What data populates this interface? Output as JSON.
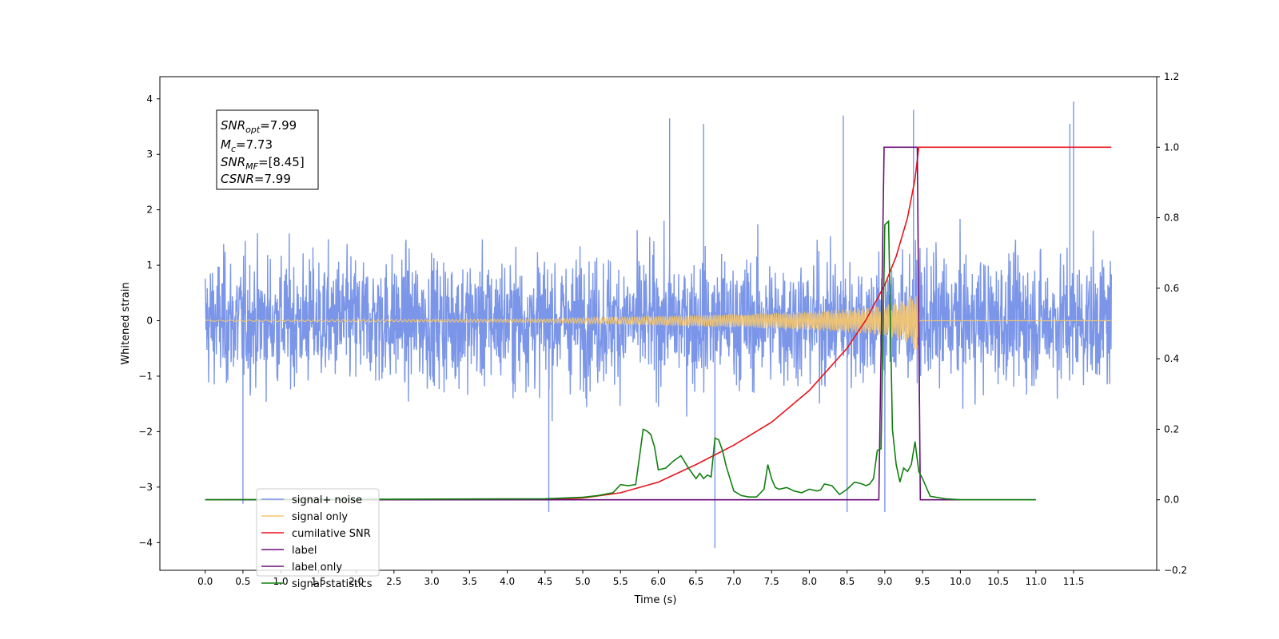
{
  "chart_data": {
    "type": "line",
    "xlabel": "Time (s)",
    "ylabel": "Whitened strain",
    "xlim": [
      -0.6,
      12.6
    ],
    "ylim": [
      -4.5,
      4.4
    ],
    "y2lim": [
      -0.2,
      1.2
    ],
    "x_ticks": [
      0.0,
      0.5,
      1.0,
      1.5,
      2.0,
      2.5,
      3.0,
      3.5,
      4.0,
      4.5,
      5.0,
      5.5,
      6.0,
      6.5,
      7.0,
      7.5,
      8.0,
      8.5,
      9.0,
      9.5,
      10.0,
      10.5,
      11.0,
      11.5
    ],
    "x_tick_labels": [
      "0.0",
      "0.5",
      "1.0",
      "1.5",
      "2.0",
      "2.5",
      "3.0",
      "3.5",
      "4.0",
      "4.5",
      "5.0",
      "5.5",
      "6.0",
      "6.5",
      "7.0",
      "7.5",
      "8.0",
      "8.5",
      "9.0",
      "9.5",
      "10.0",
      "10.5",
      "11.0",
      "11.5"
    ],
    "y_ticks": [
      -4,
      -3,
      -2,
      -1,
      0,
      1,
      2,
      3,
      4
    ],
    "y_tick_labels": [
      "−4",
      "−3",
      "−2",
      "−1",
      "0",
      "1",
      "2",
      "3",
      "4"
    ],
    "y2_ticks": [
      -0.2,
      0.0,
      0.2,
      0.4,
      0.6,
      0.8,
      1.0,
      1.2
    ],
    "y2_tick_labels": [
      "−0.2",
      "0.0",
      "0.2",
      "0.4",
      "0.6",
      "0.8",
      "1.0",
      "1.2"
    ],
    "grid": false,
    "legend_placement": "lower-left",
    "annotation": {
      "snr_opt": {
        "base": "SNR",
        "sub": "opt",
        "value": "=7.99"
      },
      "mc": {
        "base": "M",
        "sub": "c",
        "value": "=7.73"
      },
      "snr_mf": {
        "base": "SNR",
        "sub": "MF",
        "value": "=[8.45]"
      },
      "csnr": {
        "base": "CSNR",
        "value": "=7.99"
      }
    },
    "series": [
      {
        "name": "signal+ noise",
        "color": "#7b96e8",
        "axis": "left",
        "x_range": [
          0.0,
          12.0
        ],
        "envelope_typical": [
          -1.9,
          2.0
        ],
        "peaks": [
          {
            "x": 0.5,
            "y": -3.3
          },
          {
            "x": 4.55,
            "y": -3.45
          },
          {
            "x": 6.75,
            "y": -4.1
          },
          {
            "x": 9.0,
            "y": -3.45
          },
          {
            "x": 8.5,
            "y": -3.45
          },
          {
            "x": 9.38,
            "y": 3.8
          },
          {
            "x": 11.5,
            "y": 3.95
          },
          {
            "x": 8.45,
            "y": 3.7
          },
          {
            "x": 6.15,
            "y": 3.65
          },
          {
            "x": 11.45,
            "y": 3.55
          },
          {
            "x": 6.6,
            "y": 3.55
          }
        ]
      },
      {
        "name": "signal only",
        "color": "#f5c56b",
        "axis": "left",
        "x": [
          0.0,
          4.5,
          5.5,
          6.5,
          7.0,
          7.5,
          8.0,
          8.5,
          8.8,
          9.0,
          9.2,
          9.35,
          9.43,
          9.46,
          12.0
        ],
        "amplitude": [
          0.01,
          0.03,
          0.07,
          0.1,
          0.12,
          0.14,
          0.17,
          0.21,
          0.24,
          0.28,
          0.34,
          0.45,
          0.6,
          0.0,
          0.0
        ]
      },
      {
        "name": "cumilative SNR",
        "color": "#e8141c",
        "axis": "right",
        "x": [
          0.0,
          4.5,
          5.0,
          5.5,
          6.0,
          6.5,
          7.0,
          7.5,
          8.0,
          8.5,
          8.75,
          9.0,
          9.15,
          9.3,
          9.4,
          9.45,
          9.47,
          12.0
        ],
        "y": [
          0.0,
          0.0,
          0.005,
          0.02,
          0.05,
          0.1,
          0.155,
          0.22,
          0.31,
          0.43,
          0.51,
          0.61,
          0.69,
          0.8,
          0.91,
          1.0,
          1.0,
          1.0
        ]
      },
      {
        "name": "label",
        "color": "#6a0e78",
        "axis": "right",
        "x": [
          0.0,
          8.92,
          8.99,
          9.43,
          9.47,
          9.52,
          11.0
        ],
        "y": [
          0.0,
          0.0,
          1.0,
          1.0,
          0.0,
          0.0,
          0.0
        ]
      },
      {
        "name": "label only",
        "color": "#6a0e78",
        "axis": "right"
      },
      {
        "name": "signal statistics",
        "color": "#108010",
        "axis": "right",
        "x": [
          0.0,
          4.5,
          5.0,
          5.2,
          5.4,
          5.5,
          5.6,
          5.7,
          5.75,
          5.8,
          5.85,
          5.9,
          5.95,
          6.0,
          6.1,
          6.2,
          6.3,
          6.4,
          6.5,
          6.55,
          6.6,
          6.65,
          6.7,
          6.75,
          6.8,
          6.85,
          6.9,
          7.0,
          7.1,
          7.2,
          7.3,
          7.4,
          7.45,
          7.5,
          7.55,
          7.6,
          7.7,
          7.8,
          7.9,
          8.0,
          8.1,
          8.15,
          8.2,
          8.3,
          8.4,
          8.5,
          8.6,
          8.7,
          8.75,
          8.8,
          8.85,
          8.9,
          8.95,
          9.0,
          9.05,
          9.1,
          9.15,
          9.2,
          9.25,
          9.3,
          9.35,
          9.4,
          9.45,
          9.5,
          9.6,
          9.8,
          10.0,
          11.0
        ],
        "y": [
          0.0,
          0.003,
          0.007,
          0.012,
          0.02,
          0.043,
          0.04,
          0.043,
          0.12,
          0.2,
          0.195,
          0.185,
          0.15,
          0.085,
          0.09,
          0.11,
          0.125,
          0.09,
          0.06,
          0.075,
          0.06,
          0.07,
          0.065,
          0.175,
          0.17,
          0.14,
          0.095,
          0.025,
          0.012,
          0.008,
          0.008,
          0.03,
          0.1,
          0.06,
          0.035,
          0.03,
          0.035,
          0.025,
          0.02,
          0.03,
          0.025,
          0.028,
          0.045,
          0.04,
          0.015,
          0.03,
          0.05,
          0.045,
          0.04,
          0.045,
          0.06,
          0.14,
          0.145,
          0.78,
          0.79,
          0.2,
          0.1,
          0.05,
          0.09,
          0.08,
          0.1,
          0.165,
          0.08,
          0.06,
          0.01,
          0.003,
          0.0,
          0.0
        ]
      }
    ]
  }
}
